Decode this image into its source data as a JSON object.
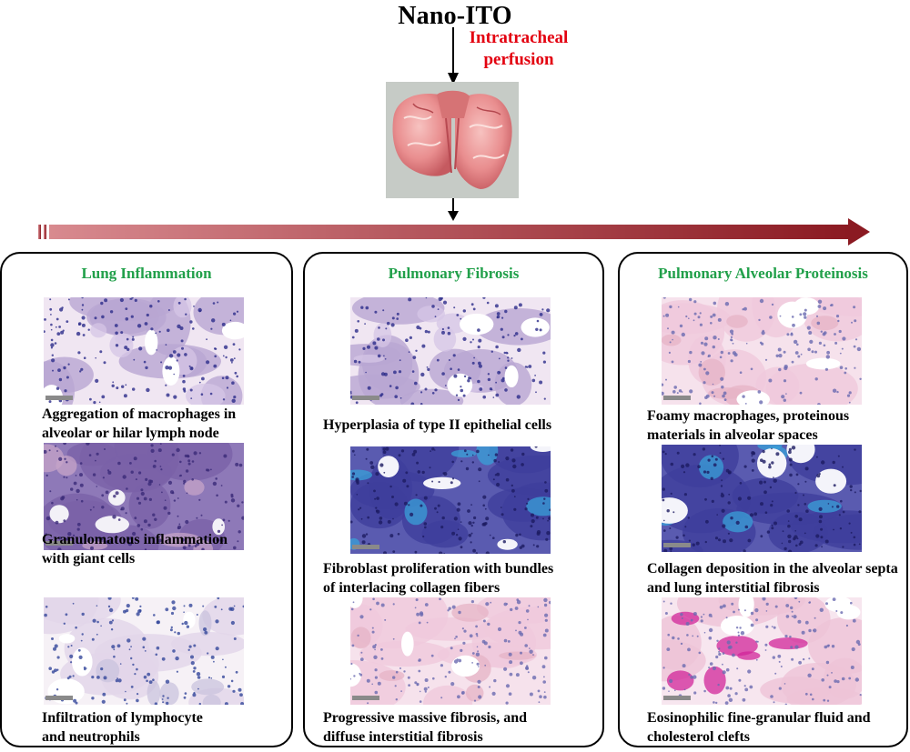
{
  "header": {
    "title": "Nano-ITO",
    "route": [
      "Intratracheal",
      "perfusion"
    ]
  },
  "colors": {
    "route_text": "#e3000f",
    "panel_title": "#21a04a",
    "arrow_start": "#d88a8f",
    "arrow_end": "#8b1a22"
  },
  "panels": [
    {
      "title": "Lung Inflammation",
      "items": [
        {
          "caption": [
            "Aggregation of macrophages in",
            "alveolar or hilar lymph node"
          ],
          "stain": "he-dense"
        },
        {
          "caption": [
            "Granulomatous inflammation",
            "with giant cells"
          ],
          "stain": "purple"
        },
        {
          "caption": [
            "Infiltration of lymphocyte",
            "and neutrophils"
          ],
          "stain": "he-pale"
        }
      ]
    },
    {
      "title": "Pulmonary Fibrosis",
      "items": [
        {
          "caption": [
            "Hyperplasia of type II epithelial cells"
          ],
          "stain": "he-dense"
        },
        {
          "caption": [
            "Fibroblast proliferation with bundles",
            "of interlacing collagen fibers"
          ],
          "stain": "trichrome"
        },
        {
          "caption": [
            "Progressive massive fibrosis, and",
            "diffuse interstitial fibrosis"
          ],
          "stain": "pink"
        }
      ]
    },
    {
      "title": "Pulmonary Alveolar Proteinosis",
      "items": [
        {
          "caption": [
            "Foamy macrophages, proteinous",
            "materials in alveolar spaces"
          ],
          "stain": "pink"
        },
        {
          "caption": [
            "Collagen deposition in the alveolar septa",
            "and lung interstitial fibrosis"
          ],
          "stain": "trichrome"
        },
        {
          "caption": [
            "Eosinophilic fine-granular fluid and",
            "cholesterol clefts"
          ],
          "stain": "magenta"
        }
      ]
    }
  ]
}
